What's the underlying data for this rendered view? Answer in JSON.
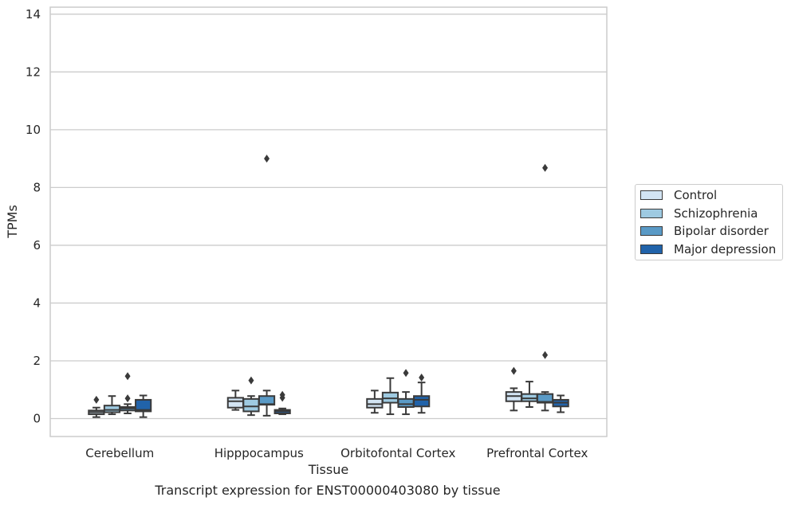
{
  "chart_data": {
    "type": "boxplot",
    "title": "Transcript expression for ENST00000403080 by tissue",
    "xlabel": "Tissue",
    "ylabel": "TPMs",
    "ylim": [
      -0.6,
      14.2
    ],
    "yticks": [
      0,
      2,
      4,
      6,
      8,
      10,
      12,
      14
    ],
    "grid": true,
    "legend_position": "right",
    "categories": [
      "Cerebellum",
      "Hipppocampus",
      "Orbitofontal Cortex",
      "Prefrontal Cortex"
    ],
    "series": [
      {
        "name": "Control",
        "color": "#d3e4f3",
        "boxes": [
          {
            "whislo": 0.05,
            "q1": 0.15,
            "med": 0.22,
            "q3": 0.28,
            "whishi": 0.38,
            "fliers": [
              0.65
            ]
          },
          {
            "whislo": 0.3,
            "q1": 0.38,
            "med": 0.6,
            "q3": 0.72,
            "whishi": 0.97,
            "fliers": []
          },
          {
            "whislo": 0.2,
            "q1": 0.38,
            "med": 0.5,
            "q3": 0.68,
            "whishi": 0.97,
            "fliers": []
          },
          {
            "whislo": 0.28,
            "q1": 0.6,
            "med": 0.78,
            "q3": 0.92,
            "whishi": 1.05,
            "fliers": [
              1.65
            ]
          }
        ]
      },
      {
        "name": "Schizophrenia",
        "color": "#9ecae1",
        "boxes": [
          {
            "whislo": 0.15,
            "q1": 0.22,
            "med": 0.3,
            "q3": 0.45,
            "whishi": 0.78,
            "fliers": []
          },
          {
            "whislo": 0.12,
            "q1": 0.25,
            "med": 0.42,
            "q3": 0.68,
            "whishi": 0.78,
            "fliers": [
              1.32
            ]
          },
          {
            "whislo": 0.15,
            "q1": 0.55,
            "med": 0.7,
            "q3": 0.9,
            "whishi": 1.4,
            "fliers": []
          },
          {
            "whislo": 0.4,
            "q1": 0.6,
            "med": 0.7,
            "q3": 0.85,
            "whishi": 1.28,
            "fliers": []
          }
        ]
      },
      {
        "name": "Bipolar disorder",
        "color": "#5a9ac6",
        "boxes": [
          {
            "whislo": 0.18,
            "q1": 0.28,
            "med": 0.35,
            "q3": 0.4,
            "whishi": 0.5,
            "fliers": [
              0.7,
              1.47
            ]
          },
          {
            "whislo": 0.1,
            "q1": 0.48,
            "med": 0.5,
            "q3": 0.78,
            "whishi": 0.97,
            "fliers": [
              9.0
            ]
          },
          {
            "whislo": 0.15,
            "q1": 0.4,
            "med": 0.5,
            "q3": 0.68,
            "whishi": 0.92,
            "fliers": [
              1.58
            ]
          },
          {
            "whislo": 0.28,
            "q1": 0.55,
            "med": 0.58,
            "q3": 0.85,
            "whishi": 0.92,
            "fliers": [
              2.2,
              8.68
            ]
          }
        ]
      },
      {
        "name": "Major depression",
        "color": "#2163aa",
        "boxes": [
          {
            "whislo": 0.05,
            "q1": 0.25,
            "med": 0.3,
            "q3": 0.65,
            "whishi": 0.8,
            "fliers": []
          },
          {
            "whislo": 0.15,
            "q1": 0.18,
            "med": 0.25,
            "q3": 0.3,
            "whishi": 0.35,
            "fliers": [
              0.72,
              0.82
            ]
          },
          {
            "whislo": 0.2,
            "q1": 0.42,
            "med": 0.65,
            "q3": 0.78,
            "whishi": 1.25,
            "fliers": [
              1.42
            ]
          },
          {
            "whislo": 0.22,
            "q1": 0.42,
            "med": 0.55,
            "q3": 0.65,
            "whishi": 0.8,
            "fliers": []
          }
        ]
      }
    ]
  }
}
